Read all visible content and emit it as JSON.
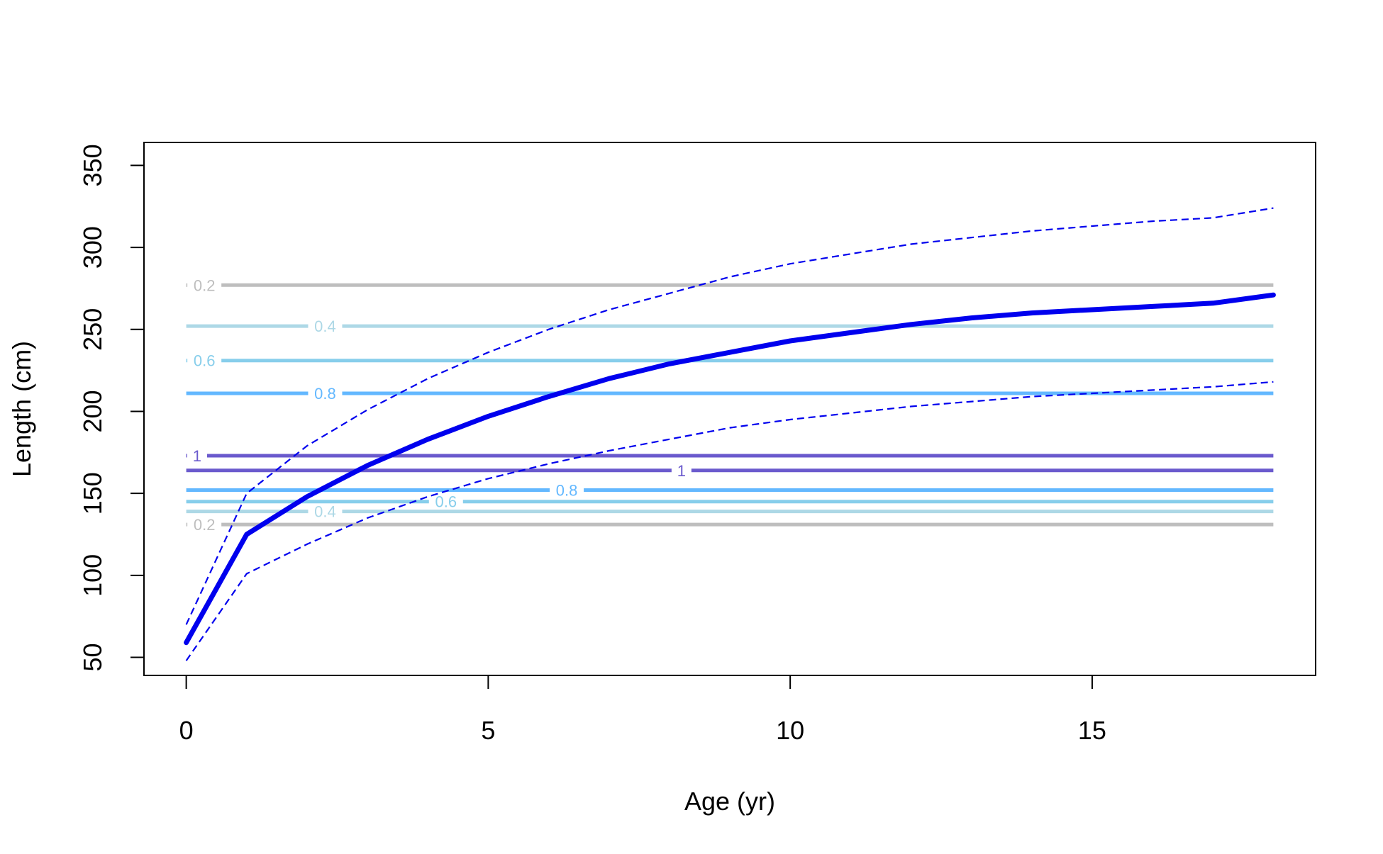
{
  "chart_data": {
    "type": "line",
    "title": "",
    "xlabel": "Age (yr)",
    "ylabel": "Length (cm)",
    "xlim": [
      -0.7,
      18.7
    ],
    "ylim": [
      39,
      364
    ],
    "x_ticks": [
      0,
      5,
      10,
      15
    ],
    "y_ticks": [
      50,
      100,
      150,
      200,
      250,
      300,
      350
    ],
    "grid": false,
    "legend": "none",
    "growth_curve": {
      "color": "#0000ee",
      "x": [
        0,
        1,
        2,
        3,
        4,
        5,
        6,
        7,
        8,
        9,
        10,
        11,
        12,
        13,
        14,
        15,
        16,
        17,
        18
      ],
      "mean": [
        59,
        125,
        148,
        167,
        183,
        197,
        209,
        220,
        229,
        236,
        243,
        248,
        253,
        257,
        260,
        262,
        264,
        266,
        271
      ],
      "upper": [
        70,
        150,
        179,
        201,
        220,
        236,
        250,
        262,
        272,
        282,
        290,
        296,
        302,
        306,
        310,
        313,
        316,
        318,
        324
      ],
      "lower": [
        48,
        101,
        119,
        135,
        148,
        159,
        168,
        176,
        183,
        190,
        195,
        199,
        203,
        206,
        209,
        211,
        213,
        215,
        218
      ]
    },
    "contour_lines": [
      {
        "label": "0.2",
        "y": 277,
        "color": "#bebebe",
        "label_x": 0.3
      },
      {
        "label": "0.4",
        "y": 252,
        "color": "#add8e6",
        "label_x": 2.3
      },
      {
        "label": "0.6",
        "y": 231,
        "color": "#87ceeb",
        "label_x": 0.3
      },
      {
        "label": "0.8",
        "y": 211,
        "color": "#63b8ff",
        "label_x": 2.3
      },
      {
        "label": "1",
        "y": 173,
        "color": "#6a5acd",
        "label_x": 0.18
      },
      {
        "label": "1",
        "y": 164,
        "color": "#6a5acd",
        "label_x": 8.2
      },
      {
        "label": "0.8",
        "y": 152,
        "color": "#63b8ff",
        "label_x": 6.3
      },
      {
        "label": "0.6",
        "y": 145,
        "color": "#87ceeb",
        "label_x": 4.3
      },
      {
        "label": "0.4",
        "y": 139,
        "color": "#add8e6",
        "label_x": 2.3
      },
      {
        "label": "0.2",
        "y": 131,
        "color": "#bebebe",
        "label_x": 0.3
      }
    ]
  }
}
